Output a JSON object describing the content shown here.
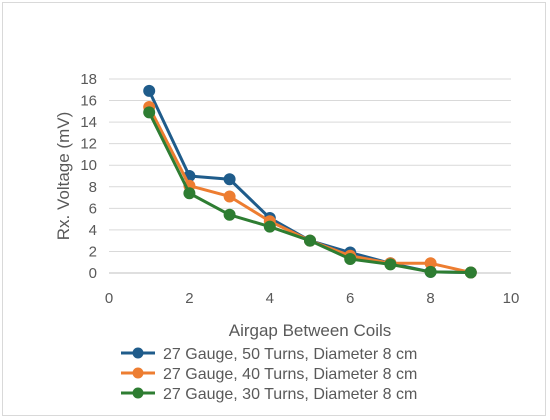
{
  "chart_data": {
    "type": "line",
    "title": "",
    "xlabel": "Airgap Between Coils",
    "ylabel": "Rx. Voltage (mV)",
    "xlim": [
      0,
      10
    ],
    "ylim": [
      0,
      18
    ],
    "x_ticks": [
      "0",
      "2",
      "4",
      "6",
      "8",
      "10"
    ],
    "y_ticks": [
      "0",
      "2",
      "4",
      "6",
      "8",
      "10",
      "12",
      "14",
      "16",
      "18"
    ],
    "grid": "horizontal",
    "legend_position": "bottom",
    "x": [
      1,
      2,
      3,
      4,
      5,
      6,
      7,
      8,
      9
    ],
    "series": [
      {
        "name": "27 Gauge, 50 Turns, Diameter 8 cm",
        "color": "#1f5c8b",
        "values": [
          16.9,
          9.0,
          8.7,
          5.1,
          3.0,
          1.9,
          0.9,
          0.1,
          0.05
        ]
      },
      {
        "name": "27 Gauge, 40 Turns, Diameter 8 cm",
        "color": "#ed7d31",
        "values": [
          15.4,
          8.1,
          7.1,
          4.8,
          3.0,
          1.6,
          0.9,
          0.9,
          0.05
        ]
      },
      {
        "name": "27 Gauge, 30 Turns, Diameter 8 cm",
        "color": "#2e7d32",
        "values": [
          14.9,
          7.4,
          5.4,
          4.3,
          3.0,
          1.3,
          0.8,
          0.1,
          0.05
        ]
      }
    ]
  }
}
